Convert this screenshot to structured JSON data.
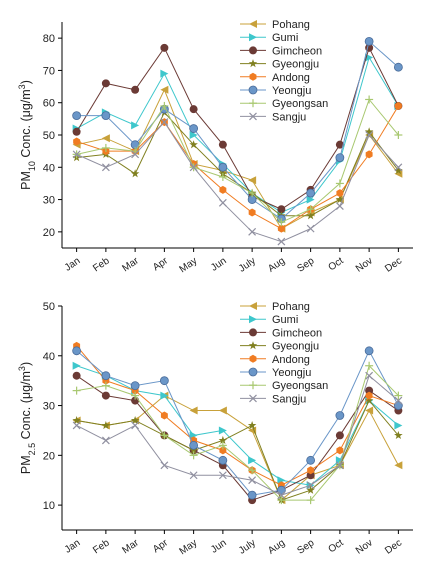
{
  "chart_data": [
    {
      "type": "line",
      "ylabel_parts": {
        "main": "PM",
        "sub": "10",
        "mid": " Conc. (μg/m",
        "sup": "3",
        "end": ")"
      },
      "categories": [
        "Jan",
        "Feb",
        "Mar",
        "Apr",
        "May",
        "Jun",
        "July",
        "Aug",
        "Sep",
        "Oct",
        "Nov",
        "Dec"
      ],
      "ylim": [
        15,
        85
      ],
      "yticks": [
        20,
        30,
        40,
        50,
        60,
        70,
        80
      ],
      "legend_position": "top-right",
      "series": [
        {
          "name": "Pohang",
          "color": "#c8a13a",
          "marker": "triangle-left",
          "values": [
            47,
            49,
            45,
            64,
            41,
            39,
            36,
            21,
            26,
            30,
            50,
            38
          ]
        },
        {
          "name": "Gumi",
          "color": "#3ec7cc",
          "marker": "triangle-right",
          "values": [
            52,
            57,
            53,
            69,
            50,
            41,
            32,
            26,
            30,
            42,
            74,
            59
          ]
        },
        {
          "name": "Gimcheon",
          "color": "#6b3a35",
          "marker": "circle",
          "values": [
            51,
            66,
            64,
            77,
            58,
            47,
            31,
            27,
            33,
            47,
            77,
            59
          ]
        },
        {
          "name": "Gyeongju",
          "color": "#808020",
          "marker": "star",
          "values": [
            43,
            44,
            38,
            57,
            47,
            38,
            32,
            25,
            25,
            30,
            51,
            39
          ]
        },
        {
          "name": "Andong",
          "color": "#f07c22",
          "marker": "hexagon",
          "values": [
            48,
            45,
            45,
            54,
            41,
            33,
            26,
            21,
            27,
            32,
            44,
            59
          ]
        },
        {
          "name": "Yeongju",
          "color": "#6a96c8",
          "marker": "circle-shaded",
          "values": [
            56,
            56,
            47,
            58,
            52,
            40,
            30,
            24,
            32,
            43,
            79,
            71
          ]
        },
        {
          "name": "Gyeongsan",
          "color": "#a8c870",
          "marker": "plus",
          "values": [
            44,
            46,
            45,
            59,
            40,
            37,
            32,
            23,
            27,
            35,
            61,
            50
          ]
        },
        {
          "name": "Sangju",
          "color": "#9090a0",
          "marker": "x",
          "values": [
            44,
            40,
            44,
            54,
            40,
            29,
            20,
            17,
            21,
            28,
            50,
            40
          ]
        }
      ]
    },
    {
      "type": "line",
      "ylabel_parts": {
        "main": "PM",
        "sub": "2.5",
        "mid": " Conc. (μg/m",
        "sup": "3",
        "end": ")"
      },
      "categories": [
        "Jan",
        "Feb",
        "Mar",
        "Apr",
        "May",
        "Jun",
        "July",
        "Aug",
        "Sep",
        "Oct",
        "Nov",
        "Dec"
      ],
      "ylim": [
        5,
        50
      ],
      "yticks": [
        10,
        20,
        30,
        40,
        50
      ],
      "legend_position": "top-right",
      "series": [
        {
          "name": "Pohang",
          "color": "#c8a13a",
          "marker": "triangle-left",
          "values": [
            27,
            26,
            27,
            32,
            29,
            29,
            25,
            11,
            16,
            18,
            29,
            18
          ]
        },
        {
          "name": "Gumi",
          "color": "#3ec7cc",
          "marker": "triangle-right",
          "values": [
            38,
            36,
            33,
            32,
            24,
            25,
            19,
            15,
            14,
            19,
            31,
            26
          ]
        },
        {
          "name": "Gimcheon",
          "color": "#6b3a35",
          "marker": "circle",
          "values": [
            36,
            32,
            31,
            24,
            21,
            18,
            11,
            13,
            16,
            24,
            33,
            29
          ]
        },
        {
          "name": "Gyeongju",
          "color": "#808020",
          "marker": "star",
          "values": [
            27,
            26,
            27,
            24,
            21,
            23,
            26,
            11,
            13,
            18,
            31,
            24
          ]
        },
        {
          "name": "Andong",
          "color": "#f07c22",
          "marker": "hexagon",
          "values": [
            42,
            35,
            33,
            28,
            23,
            21,
            17,
            14,
            17,
            21,
            32,
            30
          ]
        },
        {
          "name": "Yeongju",
          "color": "#6a96c8",
          "marker": "circle-shaded",
          "values": [
            41,
            36,
            34,
            35,
            22,
            19,
            12,
            13,
            19,
            28,
            41,
            30
          ]
        },
        {
          "name": "Gyeongsan",
          "color": "#a8c870",
          "marker": "plus",
          "values": [
            33,
            34,
            32,
            24,
            20,
            22,
            17,
            11,
            11,
            18,
            38,
            32
          ]
        },
        {
          "name": "Sangju",
          "color": "#9090a0",
          "marker": "x",
          "values": [
            26,
            23,
            26,
            18,
            16,
            16,
            15,
            12,
            14,
            18,
            36,
            31
          ]
        }
      ]
    }
  ]
}
